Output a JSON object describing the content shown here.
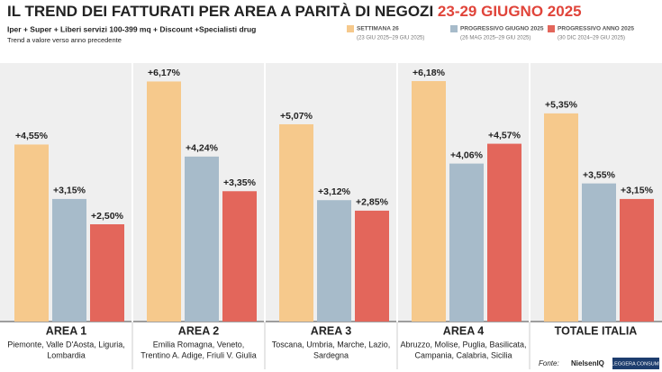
{
  "chart_data": {
    "type": "bar",
    "title": "IL TREND DEI FATTURATI PER AREA A PARITÀ DI NEGOZI",
    "title_highlight": "23-29 GIUGNO 2025",
    "subtitle": "Iper + Super + Liberi servizi 100-399 mq + Discount +Specialisti drug",
    "note": "Trend a valore verso anno precedente",
    "source": "Fonte:",
    "source_logos": [
      "NielsenIQ",
      "LEGGERA CONSUMI"
    ],
    "categories": [
      "AREA 1",
      "AREA 2",
      "AREA 3",
      "AREA 4",
      "TOTALE ITALIA"
    ],
    "regions": [
      [
        "Piemonte, Valle D'Aosta, Liguria,",
        "Lombardia"
      ],
      [
        "Emilia Romagna, Veneto,",
        "Trentino A. Adige, Friuli V. Giulia"
      ],
      [
        "Toscana, Umbria, Marche, Lazio,",
        "Sardegna"
      ],
      [
        "Abruzzo, Molise, Puglia, Basilicata,",
        "Campania, Calabria, Sicilia"
      ],
      null
    ],
    "series": [
      {
        "name": "SETTIMANA 26",
        "period": "(23 GIU 2025–29 GIU 2025)",
        "color": "#f6c98c",
        "values": [
          4.55,
          6.17,
          5.07,
          6.18,
          5.35
        ],
        "value_labels": [
          "+4,55%",
          "+6,17%",
          "+5,07%",
          "+6,18%",
          "+5,35%"
        ]
      },
      {
        "name": "PROGRESSIVO GIUGNO 2025",
        "period": "(26 MAG 2025–29 GIU 2025)",
        "color": "#a7bbca",
        "values": [
          3.15,
          4.24,
          3.12,
          4.06,
          3.55
        ],
        "value_labels": [
          "+3,15%",
          "+4,24%",
          "+3,12%",
          "+4,06%",
          "+3,55%"
        ]
      },
      {
        "name": "PROGRESSIVO ANNO 2025",
        "period": "(30 DIC 2024–29 GIU 2025)",
        "color": "#e3665b",
        "values": [
          2.5,
          3.35,
          2.85,
          4.57,
          3.15
        ],
        "value_labels": [
          "+2,50%",
          "+3,35%",
          "+2,85%",
          "+4,57%",
          "+3,15%"
        ]
      }
    ]
  }
}
